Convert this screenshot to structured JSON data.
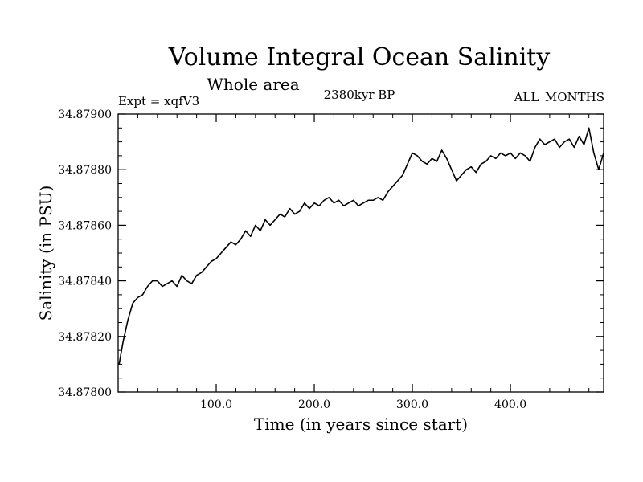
{
  "chart_data": {
    "type": "line",
    "title": "Volume Integral Ocean Salinity",
    "subtitle": "Whole area",
    "expt_label": "Expt = xqfV3",
    "period_label": "2380kyr BP",
    "months_label": "ALL_MONTHS",
    "xlabel": "Time (in years since start)",
    "ylabel": "Salinity (in PSU)",
    "xlim": [
      0,
      495
    ],
    "ylim": [
      34.878,
      34.879
    ],
    "grid": false,
    "xticks": [
      {
        "value": 100,
        "label": "100.0"
      },
      {
        "value": 200,
        "label": "200.0"
      },
      {
        "value": 300,
        "label": "300.0"
      },
      {
        "value": 400,
        "label": "400.0"
      }
    ],
    "yticks": [
      {
        "value": 34.878,
        "label": "34.87800"
      },
      {
        "value": 34.8782,
        "label": "34.87820"
      },
      {
        "value": 34.8784,
        "label": "34.87840"
      },
      {
        "value": 34.8786,
        "label": "34.87860"
      },
      {
        "value": 34.8788,
        "label": "34.87880"
      },
      {
        "value": 34.879,
        "label": "34.87900"
      }
    ],
    "series": [
      {
        "name": "Salinity",
        "x": [
          1,
          5,
          10,
          15,
          20,
          25,
          30,
          35,
          40,
          45,
          50,
          55,
          60,
          65,
          70,
          75,
          80,
          85,
          90,
          95,
          100,
          105,
          110,
          115,
          120,
          125,
          130,
          135,
          140,
          145,
          150,
          155,
          160,
          165,
          170,
          175,
          180,
          185,
          190,
          195,
          200,
          205,
          210,
          215,
          220,
          225,
          230,
          235,
          240,
          245,
          250,
          255,
          260,
          265,
          270,
          275,
          280,
          285,
          290,
          295,
          300,
          305,
          310,
          315,
          320,
          325,
          330,
          335,
          340,
          345,
          350,
          355,
          360,
          365,
          370,
          375,
          380,
          385,
          390,
          395,
          400,
          405,
          410,
          415,
          420,
          425,
          430,
          435,
          440,
          445,
          450,
          455,
          460,
          465,
          470,
          475,
          480,
          485,
          490,
          495
        ],
        "y": [
          34.8781,
          34.87818,
          34.87826,
          34.87832,
          34.87834,
          34.87835,
          34.87838,
          34.8784,
          34.8784,
          34.87838,
          34.87839,
          34.8784,
          34.87838,
          34.87842,
          34.8784,
          34.87839,
          34.87842,
          34.87843,
          34.87845,
          34.87847,
          34.87848,
          34.8785,
          34.87852,
          34.87854,
          34.87853,
          34.87855,
          34.87858,
          34.87856,
          34.8786,
          34.87858,
          34.87862,
          34.8786,
          34.87862,
          34.87864,
          34.87863,
          34.87866,
          34.87864,
          34.87865,
          34.87868,
          34.87866,
          34.87868,
          34.87867,
          34.87869,
          34.8787,
          34.87868,
          34.87869,
          34.87867,
          34.87868,
          34.87869,
          34.87867,
          34.87868,
          34.87869,
          34.87869,
          34.8787,
          34.87869,
          34.87872,
          34.87874,
          34.87876,
          34.87878,
          34.87882,
          34.87886,
          34.87885,
          34.87883,
          34.87882,
          34.87884,
          34.87883,
          34.87887,
          34.87884,
          34.8788,
          34.87876,
          34.87878,
          34.8788,
          34.87881,
          34.87879,
          34.87882,
          34.87883,
          34.87885,
          34.87884,
          34.87886,
          34.87885,
          34.87886,
          34.87884,
          34.87886,
          34.87885,
          34.87883,
          34.87888,
          34.87891,
          34.87889,
          34.8789,
          34.87891,
          34.87888,
          34.8789,
          34.87891,
          34.87888,
          34.87892,
          34.87889,
          34.87895,
          34.87886,
          34.8788,
          34.87886
        ]
      }
    ]
  }
}
